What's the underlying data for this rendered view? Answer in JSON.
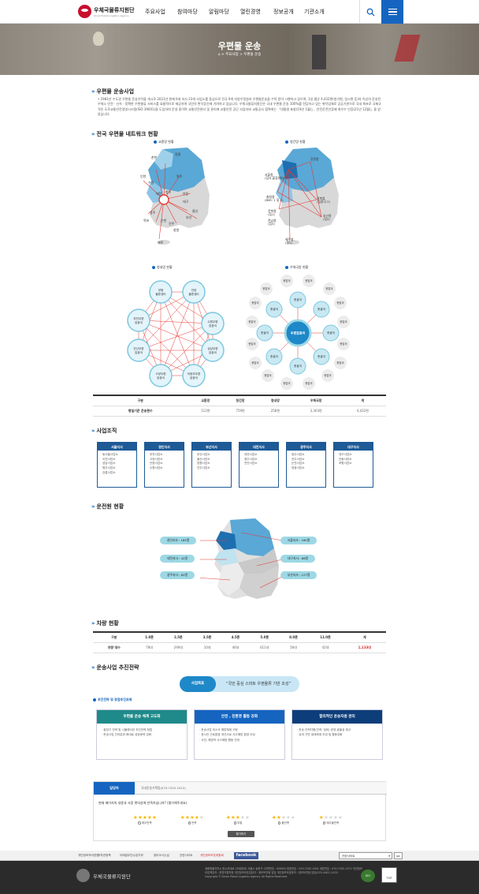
{
  "header": {
    "logo_text": "우체국물류지원단",
    "logo_sub": "Korea Postal Logistics Agency",
    "nav": [
      "주요사업",
      "참여마당",
      "알림마당",
      "열린경영",
      "정보공개",
      "기관소개"
    ]
  },
  "hero": {
    "title": "우편물 운송",
    "breadcrumb": "⌂ > 주요사업 > 우편물 운송"
  },
  "section1": {
    "title": "우편물 운송사업",
    "text": "• 1981년 수도권 우편물 운송수탁을 개시로 2021년 현재 6개 지사 23개 사업소를 중심으로 전국 9개 지방우정청과 우편물운송을 수탁 받아 시행하고 있으며, 1일 평균 4,432편(청기편, 일시편 등)의 이상의 운송된 우체소 안전 · 신속 · 정확한 우편물류 서비스를 효율적으로 제공하여 국민의 편익증진에 기여하고 있습니다. 우체국물류지원단은 국내 우편물 운송 100%를 전담하고 있는 위탁업체로 공공기관으로 국내 최초로 국제규격인 도로교통안전경영시스템(ISO 39001)을 도입하여 운영 중이며 교통안전관리 및 관리에 교통안전 공단 사업자와 교통공사 협력에는 「대통령 표창(19년 1월)」, 안전운전인증제 최우수 인증(21년 12월)」을 받았습니다."
  },
  "section2": {
    "title": "전국 우편물 네트워크 현황",
    "diagrams": [
      {
        "label": "교환망 현황",
        "cities": [
          "서울",
          "인천",
          "수원",
          "안양",
          "세종",
          "대전",
          "청주",
          "전주",
          "광주",
          "목포",
          "순천",
          "여수",
          "대구",
          "울산",
          "부산",
          "창원",
          "진주",
          "제주",
          "안동",
          "포항",
          "강릉",
          "원주",
          "춘천"
        ]
      },
      {
        "label": "청간망 현황",
        "nodes": [
          "서울청",
          "경인청",
          "충청청",
          "전북청",
          "전남청",
          "경북청",
          "부산청",
          "강원청",
          "제주청"
        ]
      },
      {
        "label": "청내망 현황",
        "nodes": [
          "부평물류센터",
          "안양물류센터",
          "수원우편집중국",
          "성남우편집중국",
          "의정부우편집중국",
          "고양우편집중국",
          "안산우편집중국",
          "부천우편집중국"
        ]
      },
      {
        "label": "우체국망 현황",
        "center": "우편집중국",
        "hubs": [
          "총괄국",
          "총괄국",
          "총괄국",
          "총괄국",
          "총괄국",
          "총괄국",
          "총괄국",
          "총괄국"
        ],
        "leaf": "현업국"
      }
    ],
    "table": {
      "headers": [
        "구분",
        "교환망",
        "청간망",
        "청내망",
        "우체국망",
        "계"
      ],
      "row": [
        "평일기준 운송편수",
        "112편",
        "759편",
        "258편",
        "3,303편",
        "4,432편"
      ]
    }
  },
  "section3": {
    "title": "사업조직",
    "branches": [
      {
        "name": "서울지사",
        "offices": [
          "동서울사업소",
          "이천사업소",
          "성남사업소",
          "평주사업소",
          "강릉사업소"
        ]
      },
      {
        "name": "경인지사",
        "offices": [
          "부천사업소",
          "고양사업소",
          "안양사업소",
          "수원사업소"
        ]
      },
      {
        "name": "부산지사",
        "offices": [
          "부산사업소",
          "울산사업소",
          "창원사업소",
          "진주사업소"
        ]
      },
      {
        "name": "대전지사",
        "offices": [
          "대전사업소",
          "청주사업소",
          "천안사업소"
        ]
      },
      {
        "name": "광주지사",
        "offices": [
          "광주사업소",
          "전주사업소",
          "순천사업소",
          "영광사업소"
        ]
      },
      {
        "name": "대구지사",
        "offices": [
          "대구사업소",
          "안동사업소",
          "포항사업소"
        ]
      }
    ]
  },
  "section4": {
    "title": "운전원 현황",
    "labels": [
      "경인지사 : 185명",
      "서울지사 : 180명",
      "대전지사 : 42명",
      "대구지사 : 86명",
      "광주지사 : 82명",
      "부산지사 : 127명"
    ]
  },
  "section5": {
    "title": "차량 현황",
    "headers": [
      "구분",
      "1.0톤",
      "2.5톤",
      "3.5톤",
      "4.5톤",
      "5.0톤",
      "8.0톤",
      "11.0톤",
      "계"
    ],
    "row": [
      "차량 대수",
      "78대",
      "290대",
      "10대",
      "46대",
      "611대",
      "56대",
      "42대",
      "1,133대"
    ]
  },
  "section6": {
    "title": "운송사업 추진전략",
    "vision_tag": "사업목표",
    "vision_text": "“국민 중심 스마트 우편물류 기반 조성”",
    "subtitle": "추진전략 및 중점추진과제",
    "strategies": [
      {
        "title": "우편물 운송 체계 고도화",
        "items": [
          "· 중장기 전략 및 시뮬레이션 추진전략 정립",
          "· 운송사업 관리분위 확대로 성장동력 강화"
        ]
      },
      {
        "title": "안전 , 친환경 활동 강화",
        "items": [
          "· 운송사업 리스크 예방체계 구현",
          "· 정시안 근로환경 개선으로 사고예방 환경 조성",
          "· 사전, 예방적 사고예방 활동 전개"
        ]
      },
      {
        "title": "합리적인 운송자원 관리",
        "items": [
          "· 운송 인력자원(인력, 장비) 운영 효율성 제고",
          "· 성과 기반 생애체계 조성 및 활동강화"
        ]
      }
    ]
  },
  "survey": {
    "tab": "담당자",
    "contact": "국내운송기획팀(070-7202-1012)",
    "question": "현재 페이지의 내용과 사용 편의성에 만족하십니까? (평가해주세요)",
    "options": [
      {
        "label": "매우만족",
        "stars": 5
      },
      {
        "label": "만족",
        "stars": 4
      },
      {
        "label": "보통",
        "stars": 3
      },
      {
        "label": "불만족",
        "stars": 2
      },
      {
        "label": "매우불만족",
        "stars": 1
      }
    ],
    "submit": "평가하기"
  },
  "footer": {
    "links": [
      "개인정보처리방침",
      "저작권정책",
      "이메일무단수집거부",
      "찾아오시는길",
      "관련사이트",
      "개인정보보호위원회"
    ],
    "facebook": "facebook",
    "select": "관련사이트",
    "go": "go",
    "logo_text": "우체국물류지원단",
    "address": "세종특별자치시 한누리대로 (국세청과) 서울시 송파구 (우편번호 : 05850) 대표번호 : 070-7202-1001 대표번호 : 070-7202-1472 개인정보보호책임자 : 운영지원처장 개인정보보호담당자 : 정보보안팀 담당 개인정보보호문의 : 정보보안팀 담당(070-4402-2422)",
    "copyright": "Copyright © Korea Postal Logistics Agency. All Rights Reserved.",
    "top": "TOP"
  },
  "colors": {
    "brand_blue": "#1565c0",
    "dark_blue": "#1e5a96",
    "accent_red": "#c8102e",
    "map_blue": "#5aa8d6",
    "light_cyan": "#9dd8e5"
  }
}
